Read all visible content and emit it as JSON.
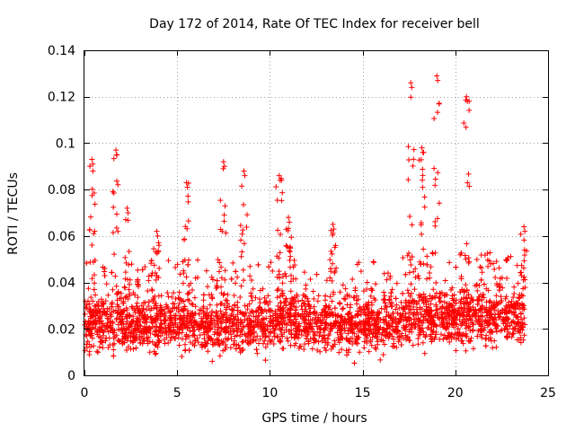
{
  "chart_data": {
    "type": "scatter",
    "title": "Day 172 of 2014, Rate Of TEC Index for receiver bell",
    "xlabel": "GPS time / hours",
    "ylabel": "ROTI / TECUs",
    "xlim": [
      0,
      25
    ],
    "ylim": [
      0,
      0.14
    ],
    "xticks": [
      "0",
      "5",
      "10",
      "15",
      "20",
      "25"
    ],
    "yticks": [
      "0",
      "0.02",
      "0.04",
      "0.06",
      "0.08",
      "0.1",
      "0.12",
      "0.14"
    ],
    "grid": true,
    "series": [
      {
        "name": "ROTI",
        "marker": "+",
        "color": "#ff0000",
        "x_range": [
          0,
          23.75
        ],
        "baseline": 0.022,
        "dense_band": [
          0.008,
          0.04
        ],
        "peaks": [
          {
            "x": 0.4,
            "y": 0.093
          },
          {
            "x": 1.7,
            "y": 0.097
          },
          {
            "x": 2.3,
            "y": 0.072
          },
          {
            "x": 3.9,
            "y": 0.062
          },
          {
            "x": 5.5,
            "y": 0.083
          },
          {
            "x": 7.5,
            "y": 0.092
          },
          {
            "x": 8.6,
            "y": 0.088
          },
          {
            "x": 10.5,
            "y": 0.086
          },
          {
            "x": 11.0,
            "y": 0.068
          },
          {
            "x": 13.4,
            "y": 0.065
          },
          {
            "x": 17.6,
            "y": 0.126
          },
          {
            "x": 18.2,
            "y": 0.098
          },
          {
            "x": 19.0,
            "y": 0.129
          },
          {
            "x": 20.6,
            "y": 0.12
          },
          {
            "x": 23.7,
            "y": 0.064
          }
        ]
      }
    ]
  }
}
